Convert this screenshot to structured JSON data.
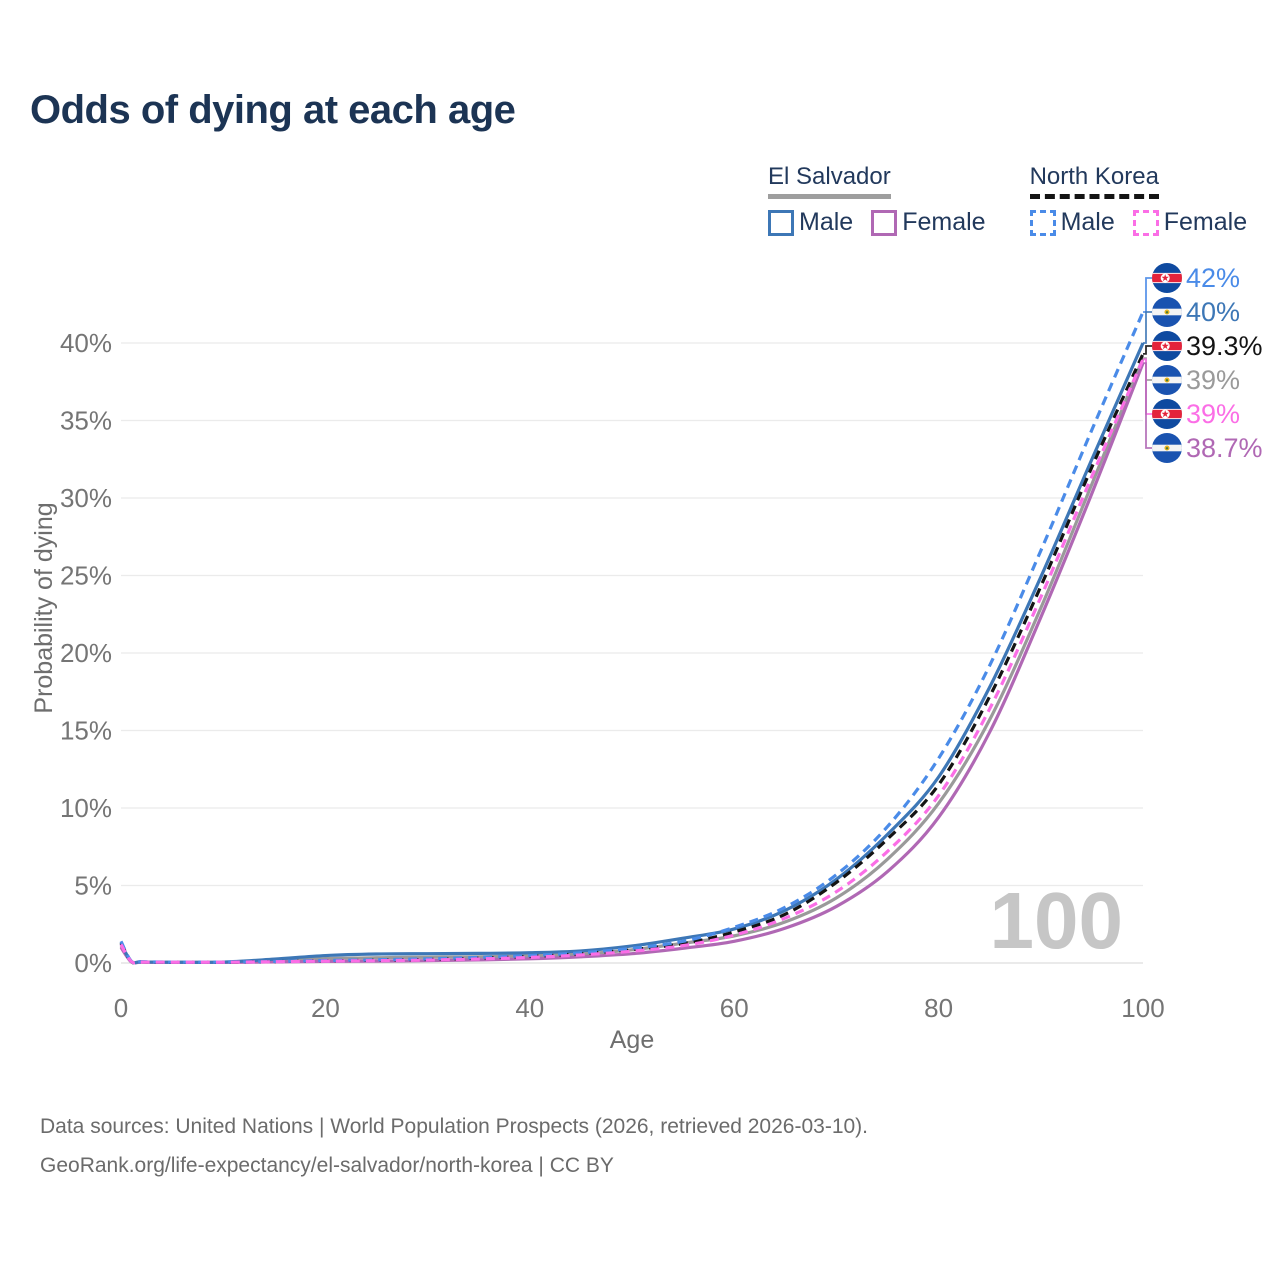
{
  "title": "Odds of dying at each age",
  "legend": {
    "groups": [
      {
        "label": "El Salvador",
        "underline_style": "solid",
        "underline_color": "#9e9e9e",
        "items": [
          {
            "label": "Male",
            "color": "#3d77b6",
            "dashed": false
          },
          {
            "label": "Female",
            "color": "#b068b4",
            "dashed": false
          }
        ]
      },
      {
        "label": "North Korea",
        "underline_style": "dashed",
        "underline_color": "#141414",
        "items": [
          {
            "label": "Male",
            "color": "#4a8be8",
            "dashed": true
          },
          {
            "label": "Female",
            "color": "#fb6ee6",
            "dashed": true
          }
        ]
      }
    ]
  },
  "chart_data": {
    "type": "line",
    "title": "Odds of dying at each age",
    "xlabel": "Age",
    "ylabel": "Probability of dying",
    "xlim": [
      0,
      100
    ],
    "ylim": [
      0,
      43
    ],
    "grid": true,
    "x_ticks": [
      0,
      20,
      40,
      60,
      80,
      100
    ],
    "y_ticks": [
      0,
      5,
      10,
      15,
      20,
      25,
      30,
      35,
      40
    ],
    "y_tick_suffix": "%",
    "hovered_age_watermark": "100",
    "x": [
      0,
      1,
      2,
      5,
      10,
      15,
      20,
      25,
      30,
      35,
      40,
      45,
      50,
      55,
      60,
      65,
      70,
      75,
      80,
      85,
      90,
      95,
      100
    ],
    "series": [
      {
        "key": "sv_male",
        "name": "El Salvador Male",
        "color": "#3d77b6",
        "dashed": false,
        "end_label": "40%",
        "values": [
          1.25,
          0.1,
          0.07,
          0.05,
          0.06,
          0.25,
          0.48,
          0.58,
          0.6,
          0.62,
          0.66,
          0.78,
          1.1,
          1.6,
          2.2,
          3.4,
          5.4,
          8.3,
          12.0,
          17.8,
          24.9,
          32.5,
          40.0
        ]
      },
      {
        "key": "sv_female",
        "name": "El Salvador Female",
        "color": "#b068b4",
        "dashed": false,
        "end_label": "38.7%",
        "values": [
          1.0,
          0.08,
          0.05,
          0.04,
          0.04,
          0.07,
          0.1,
          0.12,
          0.15,
          0.2,
          0.27,
          0.4,
          0.6,
          0.95,
          1.4,
          2.25,
          3.65,
          5.9,
          9.4,
          14.9,
          22.3,
          30.3,
          38.7
        ]
      },
      {
        "key": "sv_total",
        "name": "El Salvador Total",
        "color": "#9a9a9a",
        "dashed": false,
        "end_label": "39%",
        "values": [
          1.1,
          0.09,
          0.06,
          0.04,
          0.05,
          0.15,
          0.28,
          0.34,
          0.37,
          0.4,
          0.46,
          0.58,
          0.85,
          1.28,
          1.75,
          2.65,
          4.2,
          6.7,
          10.3,
          15.7,
          22.9,
          30.9,
          39.02
        ]
      },
      {
        "key": "nk_male",
        "name": "North Korea Male",
        "color": "#4a8be8",
        "dashed": true,
        "end_label": "42%",
        "values": [
          1.4,
          0.12,
          0.08,
          0.06,
          0.06,
          0.1,
          0.16,
          0.21,
          0.27,
          0.36,
          0.48,
          0.66,
          0.95,
          1.4,
          2.3,
          3.6,
          5.7,
          8.8,
          13.2,
          19.2,
          26.6,
          34.4,
          42.0
        ]
      },
      {
        "key": "nk_female",
        "name": "North Korea Female",
        "color": "#fb6ee6",
        "dashed": true,
        "end_label": "39%",
        "values": [
          1.2,
          0.1,
          0.06,
          0.05,
          0.05,
          0.08,
          0.12,
          0.15,
          0.19,
          0.26,
          0.36,
          0.52,
          0.76,
          1.12,
          1.8,
          2.9,
          4.6,
          7.2,
          10.8,
          16.4,
          23.6,
          31.4,
          38.95
        ]
      },
      {
        "key": "nk_total",
        "name": "North Korea Total",
        "color": "#141414",
        "dashed": true,
        "end_label": "39.3%",
        "values": [
          1.3,
          0.11,
          0.07,
          0.05,
          0.05,
          0.09,
          0.14,
          0.18,
          0.23,
          0.31,
          0.42,
          0.59,
          0.86,
          1.25,
          2.0,
          3.15,
          5.2,
          8.0,
          11.5,
          17.2,
          24.3,
          32.0,
          39.3
        ]
      }
    ],
    "end_labels": [
      {
        "label": "42%",
        "series": "nk_male",
        "flag": "north-korea",
        "color": "#4a8be8"
      },
      {
        "label": "40%",
        "series": "sv_male",
        "flag": "el-salvador",
        "color": "#3d77b6"
      },
      {
        "label": "39.3%",
        "series": "nk_total",
        "flag": "north-korea",
        "color": "#141414"
      },
      {
        "label": "39%",
        "series": "sv_total",
        "flag": "el-salvador",
        "color": "#9a9a9a"
      },
      {
        "label": "39%",
        "series": "nk_female",
        "flag": "north-korea",
        "color": "#fb6ee6"
      },
      {
        "label": "38.7%",
        "series": "sv_female",
        "flag": "el-salvador",
        "color": "#b068b4"
      }
    ],
    "flag_colors": {
      "north-korea": {
        "blue": "#0f4aa0",
        "red": "#e4233b",
        "white": "#ffffff"
      },
      "el-salvador": {
        "blue": "#1a53b0",
        "white": "#f4f4f4",
        "gold": "#e8b520",
        "green": "#4a7a38"
      }
    }
  },
  "footer": {
    "line1": "Data sources: United Nations | World Population Prospects (2026, retrieved 2026-03-10).",
    "line2": "GeoRank.org/life-expectancy/el-salvador/north-korea | CC BY"
  }
}
